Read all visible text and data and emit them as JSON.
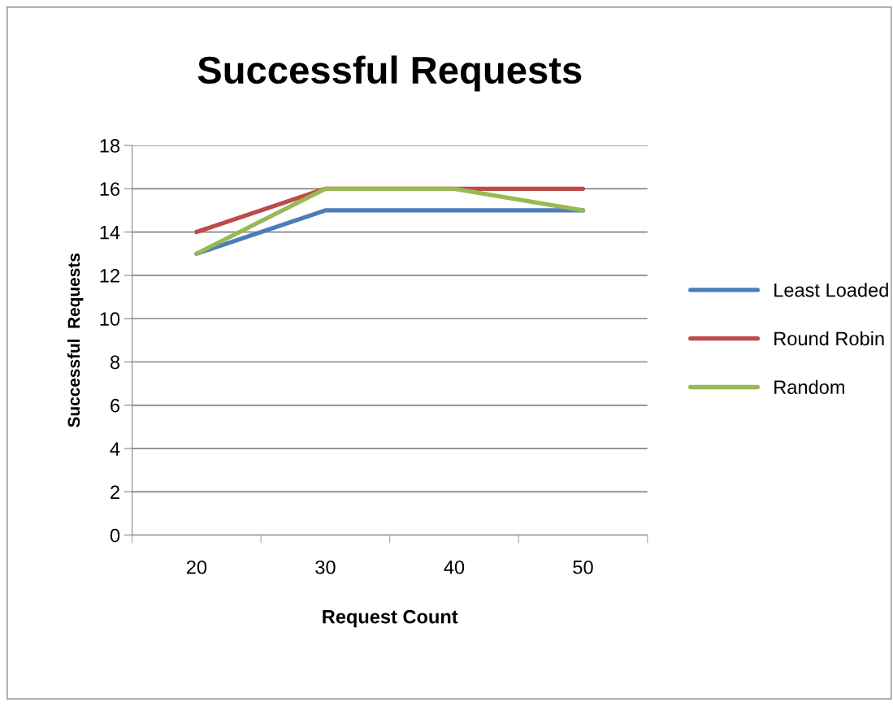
{
  "chart_data": {
    "type": "line",
    "title": "Successful Requests",
    "xlabel": "Request Count",
    "ylabel": "Successful  Requests",
    "categories": [
      "20",
      "30",
      "40",
      "50"
    ],
    "series": [
      {
        "name": "Least Loaded",
        "color": "#4a7ebb",
        "values": [
          13,
          15,
          15,
          15
        ]
      },
      {
        "name": "Round Robin",
        "color": "#be4b48",
        "values": [
          14,
          16,
          16,
          16
        ]
      },
      {
        "name": "Random",
        "color": "#98b954",
        "values": [
          13,
          16,
          16,
          15
        ]
      }
    ],
    "ylim": [
      0,
      18
    ],
    "yticks": [
      0,
      2,
      4,
      6,
      8,
      10,
      12,
      14,
      16,
      18
    ],
    "grid": "y",
    "legend": "right",
    "marker": "none",
    "line_style": "solid"
  }
}
